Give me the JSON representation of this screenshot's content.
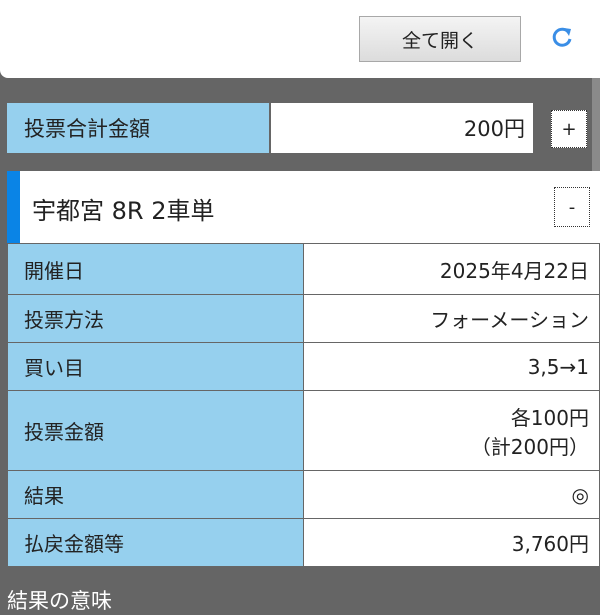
{
  "toolbar": {
    "open_all_label": "全て開く",
    "reload_icon": "reload-icon",
    "accent": "#3a8ee6"
  },
  "total": {
    "label": "投票合計金額",
    "value": "200円",
    "toggle": "+"
  },
  "race": {
    "title": "宇都宮 8R 2車単",
    "toggle": "-",
    "accent": "#0a84e6"
  },
  "rows": [
    {
      "label": "開催日",
      "value": "2025年4月22日"
    },
    {
      "label": "投票方法",
      "value": "フォーメーション"
    },
    {
      "label": "買い目",
      "value": "3,5→1"
    },
    {
      "label": "投票金額",
      "value": "各100円",
      "value2": "（計200円）"
    },
    {
      "label": "結果",
      "value": "◎"
    },
    {
      "label": "払戻金額等",
      "value": "3,760円"
    }
  ],
  "footer": {
    "text": "結果の意味"
  },
  "colors": {
    "label_bg": "#96d0ee",
    "background": "#656565"
  }
}
